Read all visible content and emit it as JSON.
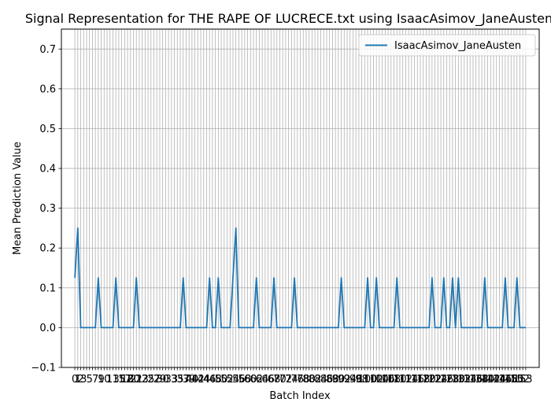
{
  "chart_data": {
    "type": "line",
    "title": "Signal Representation for THE RAPE OF LUCRECE.txt using IsaacAsimov_JaneAusten",
    "xlabel": "Batch Index",
    "ylabel": "Mean Prediction Value",
    "ylim": [
      -0.1,
      0.75
    ],
    "xlim": [
      -4.6,
      158.6
    ],
    "yticks": [
      -0.1,
      0.0,
      0.1,
      0.2,
      0.3,
      0.4,
      0.5,
      0.6,
      0.7
    ],
    "ytick_labels": [
      "−0.1",
      "0.0",
      "0.1",
      "0.2",
      "0.3",
      "0.4",
      "0.5",
      "0.6",
      "0.7"
    ],
    "grid": true,
    "legend_position": "upper right",
    "series": [
      {
        "name": "IsaacAsimov_JaneAusten",
        "color": "#1f77b4",
        "x": [
          0,
          1,
          2,
          3,
          4,
          5,
          6,
          7,
          8,
          9,
          10,
          11,
          12,
          13,
          14,
          15,
          16,
          17,
          18,
          19,
          20,
          21,
          22,
          23,
          24,
          25,
          26,
          27,
          28,
          29,
          30,
          31,
          32,
          33,
          34,
          35,
          36,
          37,
          38,
          39,
          40,
          41,
          42,
          43,
          44,
          45,
          46,
          47,
          48,
          49,
          50,
          51,
          52,
          53,
          54,
          55,
          56,
          57,
          58,
          59,
          60,
          61,
          62,
          63,
          64,
          65,
          66,
          67,
          68,
          69,
          70,
          71,
          72,
          73,
          74,
          75,
          76,
          77,
          78,
          79,
          80,
          81,
          82,
          83,
          84,
          85,
          86,
          87,
          88,
          89,
          90,
          91,
          92,
          93,
          94,
          95,
          96,
          97,
          98,
          99,
          100,
          101,
          102,
          103,
          104,
          105,
          106,
          107,
          108,
          109,
          110,
          111,
          112,
          113,
          114,
          115,
          116,
          117,
          118,
          119,
          120,
          121,
          122,
          123,
          124,
          125,
          126,
          127,
          128,
          129,
          130,
          131,
          132,
          133,
          134,
          135,
          136,
          137,
          138,
          139,
          140,
          141,
          142,
          143,
          144,
          145,
          146,
          147,
          148,
          149,
          150,
          151,
          152,
          153,
          154
        ],
        "y": [
          0.125,
          0.25,
          0,
          0,
          0,
          0,
          0,
          0,
          0.125,
          0,
          0,
          0,
          0,
          0,
          0.125,
          0,
          0,
          0,
          0,
          0,
          0,
          0.125,
          0,
          0,
          0,
          0,
          0,
          0,
          0,
          0,
          0,
          0,
          0,
          0,
          0,
          0,
          0,
          0.125,
          0,
          0,
          0,
          0,
          0,
          0,
          0,
          0,
          0.125,
          0,
          0,
          0.125,
          0,
          0,
          0,
          0,
          0.125,
          0.25,
          0,
          0,
          0,
          0,
          0,
          0,
          0.125,
          0,
          0,
          0,
          0,
          0,
          0.125,
          0,
          0,
          0,
          0,
          0,
          0,
          0.125,
          0,
          0,
          0,
          0,
          0,
          0,
          0,
          0,
          0,
          0,
          0,
          0,
          0,
          0,
          0,
          0.125,
          0,
          0,
          0,
          0,
          0,
          0,
          0,
          0,
          0.125,
          0,
          0,
          0.125,
          0,
          0,
          0,
          0,
          0,
          0,
          0.125,
          0,
          0,
          0,
          0,
          0,
          0,
          0,
          0,
          0,
          0,
          0,
          0.125,
          0,
          0,
          0,
          0.125,
          0,
          0,
          0.125,
          0,
          0.125,
          0,
          0,
          0,
          0,
          0,
          0,
          0,
          0,
          0.125,
          0,
          0,
          0,
          0,
          0,
          0,
          0.125,
          0,
          0,
          0,
          0.125,
          0,
          0,
          0
        ]
      }
    ],
    "xtick_labels_visible": [
      "0",
      "1",
      "2",
      "3",
      "5",
      "7",
      "9",
      "10",
      "13",
      "15",
      "17",
      "18",
      "20",
      "21",
      "23",
      "25",
      "27",
      "29",
      "30",
      "33",
      "35",
      "37",
      "39",
      "40",
      "42",
      "44",
      "46",
      "48",
      "50",
      "52",
      "54",
      "56",
      "58",
      "60",
      "62",
      "64",
      "66",
      "68",
      "70",
      "72",
      "74",
      "76",
      "78",
      "80",
      "82",
      "84",
      "86",
      "88",
      "90",
      "92",
      "94",
      "96",
      "98",
      "100",
      "102",
      "104",
      "106",
      "108",
      "110",
      "112",
      "114",
      "116",
      "118",
      "120",
      "122",
      "124",
      "126",
      "128",
      "130",
      "132",
      "134",
      "136",
      "138",
      "140",
      "142",
      "144",
      "146",
      "148",
      "150",
      "152",
      "153"
    ]
  }
}
